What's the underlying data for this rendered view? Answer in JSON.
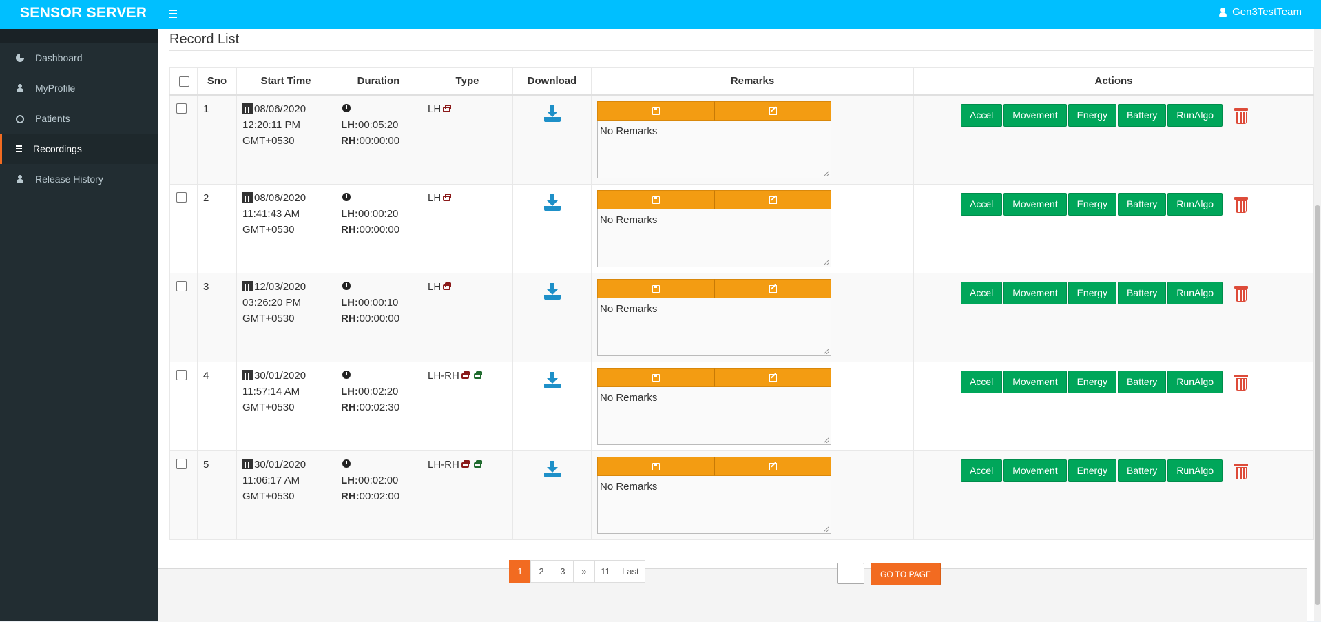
{
  "header": {
    "brand": "SENSOR SERVER",
    "user": "Gen3TestTeam"
  },
  "sidebar": {
    "items": [
      {
        "label": "Dashboard",
        "icon": "pie-chart-icon"
      },
      {
        "label": "MyProfile",
        "icon": "user-icon"
      },
      {
        "label": "Patients",
        "icon": "wheelchair-icon"
      },
      {
        "label": "Recordings",
        "icon": "list-icon",
        "active": true
      },
      {
        "label": "Release History",
        "icon": "user-icon"
      }
    ]
  },
  "main": {
    "title": "Record List",
    "columns": [
      "Sno",
      "Start Time",
      "Duration",
      "Type",
      "Download",
      "Remarks",
      "Actions"
    ],
    "rows": [
      {
        "sno": "1",
        "date": "08/06/2020",
        "time": "12:20:11 PM",
        "tz": "GMT+0530",
        "lh": "00:05:20",
        "rh": "00:00:00",
        "type": "LH",
        "remarks": "No Remarks"
      },
      {
        "sno": "2",
        "date": "08/06/2020",
        "time": "11:41:43 AM",
        "tz": "GMT+0530",
        "lh": "00:00:20",
        "rh": "00:00:00",
        "type": "LH",
        "remarks": "No Remarks"
      },
      {
        "sno": "3",
        "date": "12/03/2020",
        "time": "03:26:20 PM",
        "tz": "GMT+0530",
        "lh": "00:00:10",
        "rh": "00:00:00",
        "type": "LH",
        "remarks": "No Remarks"
      },
      {
        "sno": "4",
        "date": "30/01/2020",
        "time": "11:57:14 AM",
        "tz": "GMT+0530",
        "lh": "00:02:20",
        "rh": "00:02:30",
        "type": "LH-RH",
        "remarks": "No Remarks"
      },
      {
        "sno": "5",
        "date": "30/01/2020",
        "time": "11:06:17 AM",
        "tz": "GMT+0530",
        "lh": "00:02:00",
        "rh": "00:02:00",
        "type": "LH-RH",
        "remarks": "No Remarks"
      }
    ],
    "duration_labels": {
      "lh": "LH:",
      "rh": "RH:"
    },
    "action_buttons": [
      "Accel",
      "Movement",
      "Energy",
      "Battery",
      "RunAlgo"
    ]
  },
  "pagination": {
    "pages": [
      "1",
      "2",
      "3",
      "»",
      "11",
      "Last"
    ],
    "active": "1",
    "goto_label": "GO TO PAGE"
  },
  "colors": {
    "topbar": "#00bfff",
    "sidebar": "#222d32",
    "accent": "#f26b21",
    "action_green": "#00a65a",
    "remarks_orange": "#f39c12",
    "delete_red": "#dd4b39"
  }
}
